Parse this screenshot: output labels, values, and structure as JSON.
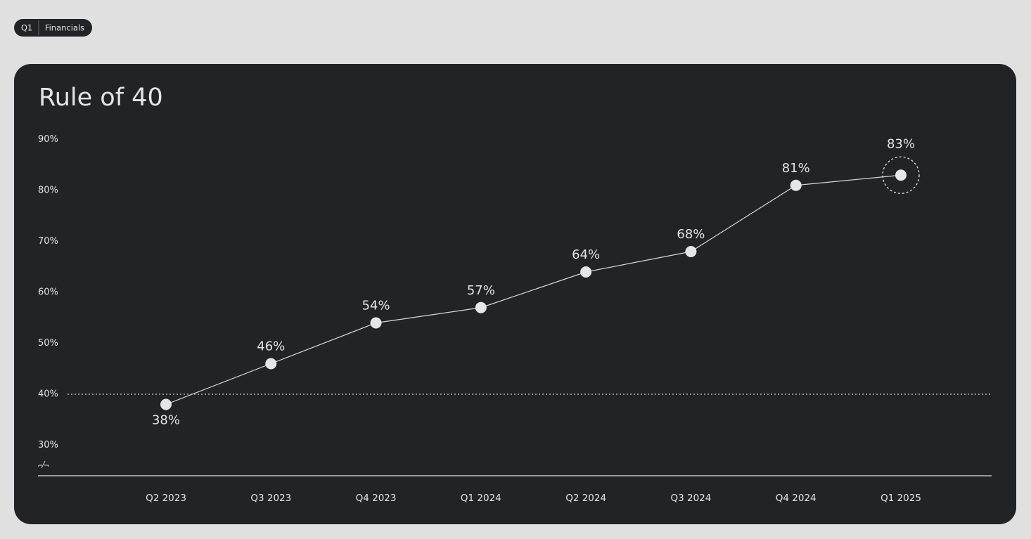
{
  "breadcrumb": [
    "Q1",
    "Financials"
  ],
  "chart_data": {
    "type": "line",
    "title": "Rule of 40",
    "categories": [
      "Q2 2023",
      "Q3 2023",
      "Q4 2023",
      "Q1 2024",
      "Q2 2024",
      "Q3 2024",
      "Q4 2024",
      "Q1 2025"
    ],
    "values": [
      38,
      46,
      54,
      57,
      64,
      68,
      81,
      83
    ],
    "value_labels": [
      "38%",
      "46%",
      "54%",
      "57%",
      "64%",
      "68%",
      "81%",
      "83%"
    ],
    "color": "#e6e6e6",
    "ylim": [
      24,
      91
    ],
    "yticks": [
      {
        "value": 90,
        "label": "90%"
      },
      {
        "value": 80,
        "label": "80%"
      },
      {
        "value": 70,
        "label": "70%"
      },
      {
        "value": 60,
        "label": "60%"
      },
      {
        "value": 50,
        "label": "50%"
      },
      {
        "value": 40,
        "label": "40%"
      },
      {
        "value": 30,
        "label": "30%"
      }
    ],
    "hline": 40,
    "highlight_index": 7,
    "grid": false
  }
}
